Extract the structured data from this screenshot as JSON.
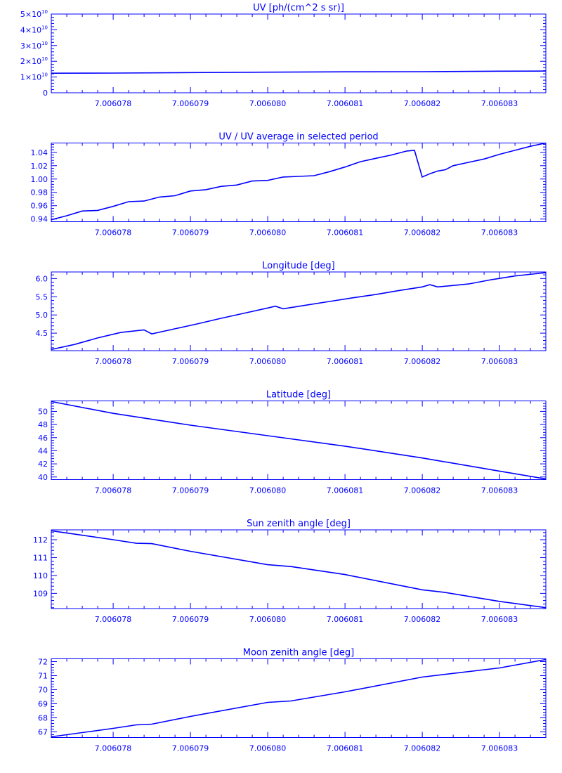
{
  "chart_data": [
    {
      "type": "line",
      "title": "UV [ph/(cm^2 s sr)]",
      "xlabel": "",
      "ylabel": "",
      "xlim": [
        7.0060772,
        7.0060836
      ],
      "ylim": [
        0,
        50000000000
      ],
      "xticks": [
        7.006078,
        7.006079,
        7.00608,
        7.006081,
        7.006082,
        7.006083
      ],
      "xtick_labels": [
        "7.006078",
        "7.006079",
        "7.006080",
        "7.006081",
        "7.006082",
        "7.006083"
      ],
      "yticks": [
        0,
        10000000000,
        20000000000,
        30000000000,
        40000000000,
        50000000000
      ],
      "ytick_mantissas": [
        "0",
        "1",
        "2",
        "3",
        "4",
        "5"
      ],
      "ytick_base": "10",
      "ytick_exponent": "10",
      "x": [
        7.0060772,
        7.006078,
        7.006079,
        7.00608,
        7.006081,
        7.006082,
        7.006083,
        7.0060836
      ],
      "y": [
        12400000000,
        12500000000,
        12800000000,
        13100000000,
        13300000000,
        13400000000,
        13700000000,
        13800000000
      ]
    },
    {
      "type": "line",
      "title": "UV / UV average in selected period",
      "xlabel": "",
      "ylabel": "",
      "xlim": [
        7.0060772,
        7.0060836
      ],
      "ylim": [
        0.936,
        1.054
      ],
      "xticks": [
        7.006078,
        7.006079,
        7.00608,
        7.006081,
        7.006082,
        7.006083
      ],
      "xtick_labels": [
        "7.006078",
        "7.006079",
        "7.006080",
        "7.006081",
        "7.006082",
        "7.006083"
      ],
      "yticks": [
        0.94,
        0.96,
        0.98,
        1.0,
        1.02,
        1.04
      ],
      "ytick_labels": [
        "0.94",
        "0.96",
        "0.98",
        "1.00",
        "1.02",
        "1.04"
      ],
      "x": [
        7.0060772,
        7.0060774,
        7.0060776,
        7.0060778,
        7.006078,
        7.0060782,
        7.0060784,
        7.0060786,
        7.0060788,
        7.006079,
        7.0060792,
        7.0060794,
        7.0060796,
        7.0060798,
        7.00608,
        7.0060802,
        7.0060804,
        7.0060806,
        7.0060808,
        7.006081,
        7.0060812,
        7.0060814,
        7.0060816,
        7.0060818,
        7.0060819,
        7.006082,
        7.0060821,
        7.0060822,
        7.0060823,
        7.0060824,
        7.0060826,
        7.0060828,
        7.006083,
        7.0060832,
        7.0060834,
        7.0060836
      ],
      "y": [
        0.939,
        0.945,
        0.952,
        0.953,
        0.959,
        0.966,
        0.967,
        0.973,
        0.975,
        0.982,
        0.984,
        0.989,
        0.991,
        0.997,
        0.998,
        1.003,
        1.004,
        1.005,
        1.011,
        1.018,
        1.026,
        1.031,
        1.036,
        1.042,
        1.043,
        1.003,
        1.008,
        1.012,
        1.014,
        1.02,
        1.025,
        1.03,
        1.037,
        1.043,
        1.049,
        1.054
      ]
    },
    {
      "type": "line",
      "title": "Longitude [deg]",
      "xlabel": "",
      "ylabel": "",
      "xlim": [
        7.0060772,
        7.0060836
      ],
      "ylim": [
        4.02,
        6.18
      ],
      "xticks": [
        7.006078,
        7.006079,
        7.00608,
        7.006081,
        7.006082,
        7.006083
      ],
      "xtick_labels": [
        "7.006078",
        "7.006079",
        "7.006080",
        "7.006081",
        "7.006082",
        "7.006083"
      ],
      "yticks": [
        4.5,
        5.0,
        5.5,
        6.0
      ],
      "ytick_labels": [
        "4.5",
        "5.0",
        "5.5",
        "6.0"
      ],
      "x": [
        7.0060772,
        7.0060775,
        7.0060778,
        7.0060781,
        7.0060784,
        7.0060785,
        7.0060788,
        7.0060791,
        7.0060794,
        7.0060797,
        7.00608,
        7.0060801,
        7.0060802,
        7.0060805,
        7.0060808,
        7.0060811,
        7.0060814,
        7.0060817,
        7.006082,
        7.0060821,
        7.0060822,
        7.0060826,
        7.0060829,
        7.0060832,
        7.0060836
      ],
      "y": [
        4.05,
        4.19,
        4.37,
        4.52,
        4.59,
        4.48,
        4.62,
        4.76,
        4.91,
        5.05,
        5.19,
        5.24,
        5.17,
        5.27,
        5.37,
        5.47,
        5.56,
        5.67,
        5.77,
        5.83,
        5.77,
        5.85,
        5.97,
        6.07,
        6.16
      ]
    },
    {
      "type": "line",
      "title": "Latitude [deg]",
      "xlabel": "",
      "ylabel": "",
      "xlim": [
        7.0060772,
        7.0060836
      ],
      "ylim": [
        39.6,
        51.6
      ],
      "xticks": [
        7.006078,
        7.006079,
        7.00608,
        7.006081,
        7.006082,
        7.006083
      ],
      "xtick_labels": [
        "7.006078",
        "7.006079",
        "7.006080",
        "7.006081",
        "7.006082",
        "7.006083"
      ],
      "yticks": [
        40,
        42,
        44,
        46,
        48,
        50
      ],
      "ytick_labels": [
        "40",
        "42",
        "44",
        "46",
        "48",
        "50"
      ],
      "x": [
        7.0060772,
        7.006078,
        7.006079,
        7.00608,
        7.006081,
        7.006082,
        7.006083,
        7.0060836
      ],
      "y": [
        51.5,
        49.7,
        47.9,
        46.3,
        44.7,
        42.9,
        40.9,
        39.7
      ]
    },
    {
      "type": "line",
      "title": "Sun zenith angle [deg]",
      "xlabel": "",
      "ylabel": "",
      "xlim": [
        7.0060772,
        7.0060836
      ],
      "ylim": [
        108.15,
        112.55
      ],
      "xticks": [
        7.006078,
        7.006079,
        7.00608,
        7.006081,
        7.006082,
        7.006083
      ],
      "xtick_labels": [
        "7.006078",
        "7.006079",
        "7.006080",
        "7.006081",
        "7.006082",
        "7.006083"
      ],
      "yticks": [
        109,
        110,
        111,
        112
      ],
      "ytick_labels": [
        "109",
        "110",
        "111",
        "112"
      ],
      "x": [
        7.0060772,
        7.006078,
        7.0060783,
        7.0060785,
        7.006079,
        7.00608,
        7.0060803,
        7.006081,
        7.006082,
        7.0060823,
        7.006083,
        7.0060836
      ],
      "y": [
        112.5,
        112.0,
        111.8,
        111.78,
        111.35,
        110.6,
        110.5,
        110.05,
        109.2,
        109.05,
        108.55,
        108.2
      ]
    },
    {
      "type": "line",
      "title": "Moon zenith angle [deg]",
      "xlabel": "",
      "ylabel": "",
      "xlim": [
        7.0060772,
        7.0060836
      ],
      "ylim": [
        66.6,
        72.2
      ],
      "xticks": [
        7.006078,
        7.006079,
        7.00608,
        7.006081,
        7.006082,
        7.006083
      ],
      "xtick_labels": [
        "7.006078",
        "7.006079",
        "7.006080",
        "7.006081",
        "7.006082",
        "7.006083"
      ],
      "yticks": [
        67,
        68,
        69,
        70,
        71,
        72
      ],
      "ytick_labels": [
        "67",
        "68",
        "69",
        "70",
        "71",
        "72"
      ],
      "x": [
        7.0060772,
        7.006078,
        7.0060783,
        7.0060785,
        7.006079,
        7.00608,
        7.0060803,
        7.006081,
        7.006082,
        7.006083,
        7.0060836
      ],
      "y": [
        66.65,
        67.25,
        67.5,
        67.55,
        68.1,
        69.1,
        69.2,
        69.85,
        70.9,
        71.55,
        72.15
      ]
    }
  ]
}
